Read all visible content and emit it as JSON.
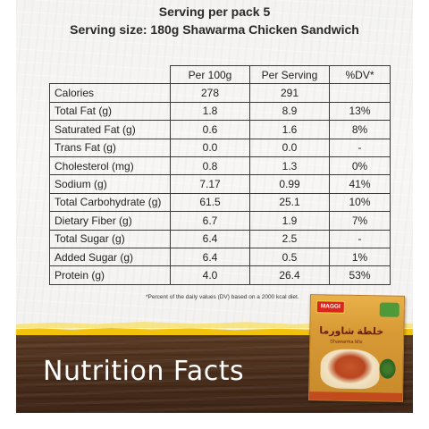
{
  "header": {
    "serving_per_pack": "Serving per pack 5",
    "serving_size": "Serving size: 180g Shawarma Chicken Sandwich"
  },
  "table": {
    "columns": [
      "",
      "Per 100g",
      "Per Serving",
      "%DV*"
    ],
    "rows": [
      {
        "label": "Calories",
        "per100": "278",
        "serving": "291",
        "dv": ""
      },
      {
        "label": "Total Fat (g)",
        "per100": "1.8",
        "serving": "8.9",
        "dv": "13%"
      },
      {
        "label": "Saturated Fat (g)",
        "per100": "0.6",
        "serving": "1.6",
        "dv": "8%"
      },
      {
        "label": "Trans Fat (g)",
        "per100": "0.0",
        "serving": "0.0",
        "dv": "-"
      },
      {
        "label": "Cholesterol (mg)",
        "per100": "0.8",
        "serving": "1.3",
        "dv": "0%"
      },
      {
        "label": "Sodium (g)",
        "per100": "7.17",
        "serving": "0.99",
        "dv": "41%"
      },
      {
        "label": "Total Carbohydrate (g)",
        "per100": "61.5",
        "serving": "25.1",
        "dv": "10%"
      },
      {
        "label": "Dietary Fiber (g)",
        "per100": "6.7",
        "serving": "1.9",
        "dv": "7%"
      },
      {
        "label": "Total Sugar (g)",
        "per100": "6.4",
        "serving": "2.5",
        "dv": "-"
      },
      {
        "label": "Added Sugar (g)",
        "per100": "6.4",
        "serving": "0.5",
        "dv": "1%"
      },
      {
        "label": "Protein (g)",
        "per100": "4.0",
        "serving": "26.4",
        "dv": "53%"
      }
    ]
  },
  "footnote": "*Percent of the daily values (DV) based on a 2000 kcal diet.",
  "banner_title": "Nutrition Facts",
  "product": {
    "brand": "MAGGI",
    "arabic_name": "خلطة شاورما",
    "english_name": "Shawarma Mix"
  },
  "colors": {
    "wood": "#4a2e1c",
    "yellow": "#f3c20c",
    "brand_red": "#d8261c",
    "pack_orange": "#d79a35"
  }
}
